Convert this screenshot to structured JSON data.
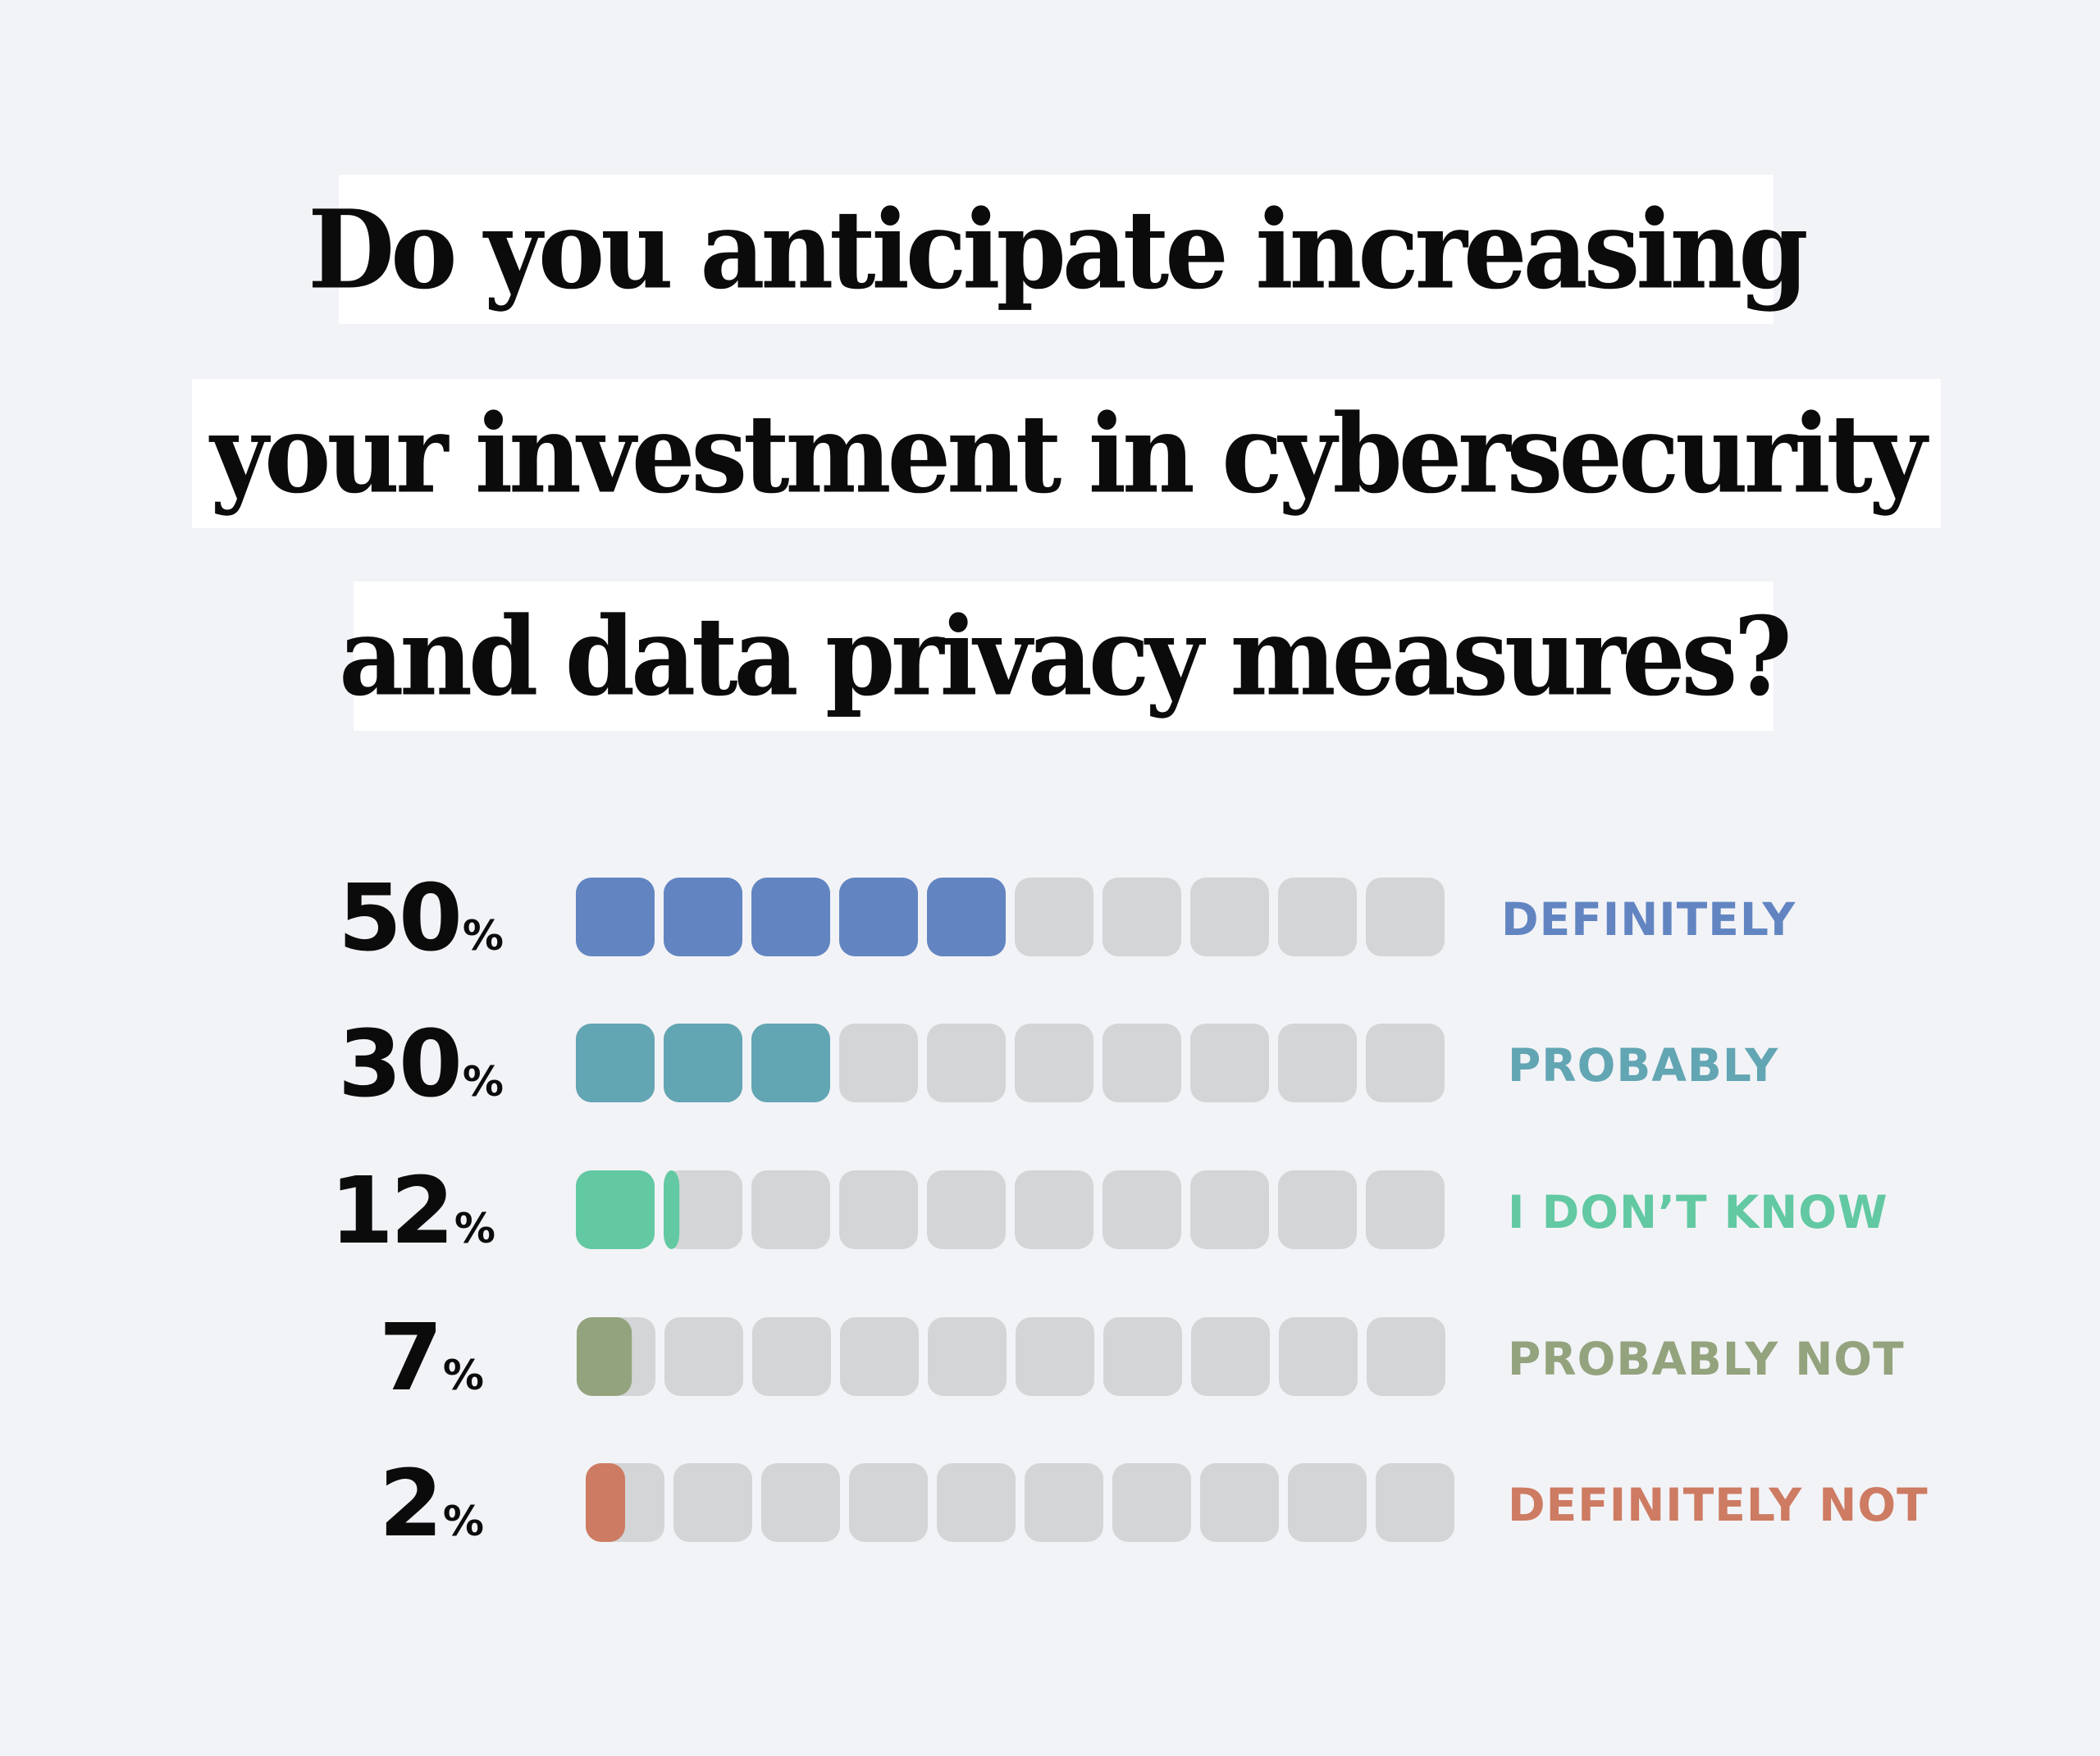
{
  "title": {
    "lines": [
      "Do you anticipate increasing",
      "your investment in cybersecurity",
      "and data privacy measures?"
    ]
  },
  "chart_data": {
    "type": "bar",
    "title": "Do you anticipate increasing your investment in cybersecurity and data privacy measures?",
    "unit": "%",
    "categories": [
      "DEFINITELY",
      "PROBABLY",
      "I DON’T KNOW",
      "PROBABLY NOT",
      "DEFINITELY NOT"
    ],
    "values": [
      50,
      30,
      12,
      7,
      2
    ],
    "value_labels": [
      "50",
      "30",
      "12",
      "7",
      "2"
    ],
    "ylim": [
      0,
      100
    ],
    "cells_per_bar": 10,
    "colors": [
      "#6285c2",
      "#62a5b3",
      "#62c9a2",
      "#93a37d",
      "#cd7b62"
    ],
    "empty_color": "#d3d5d6"
  }
}
